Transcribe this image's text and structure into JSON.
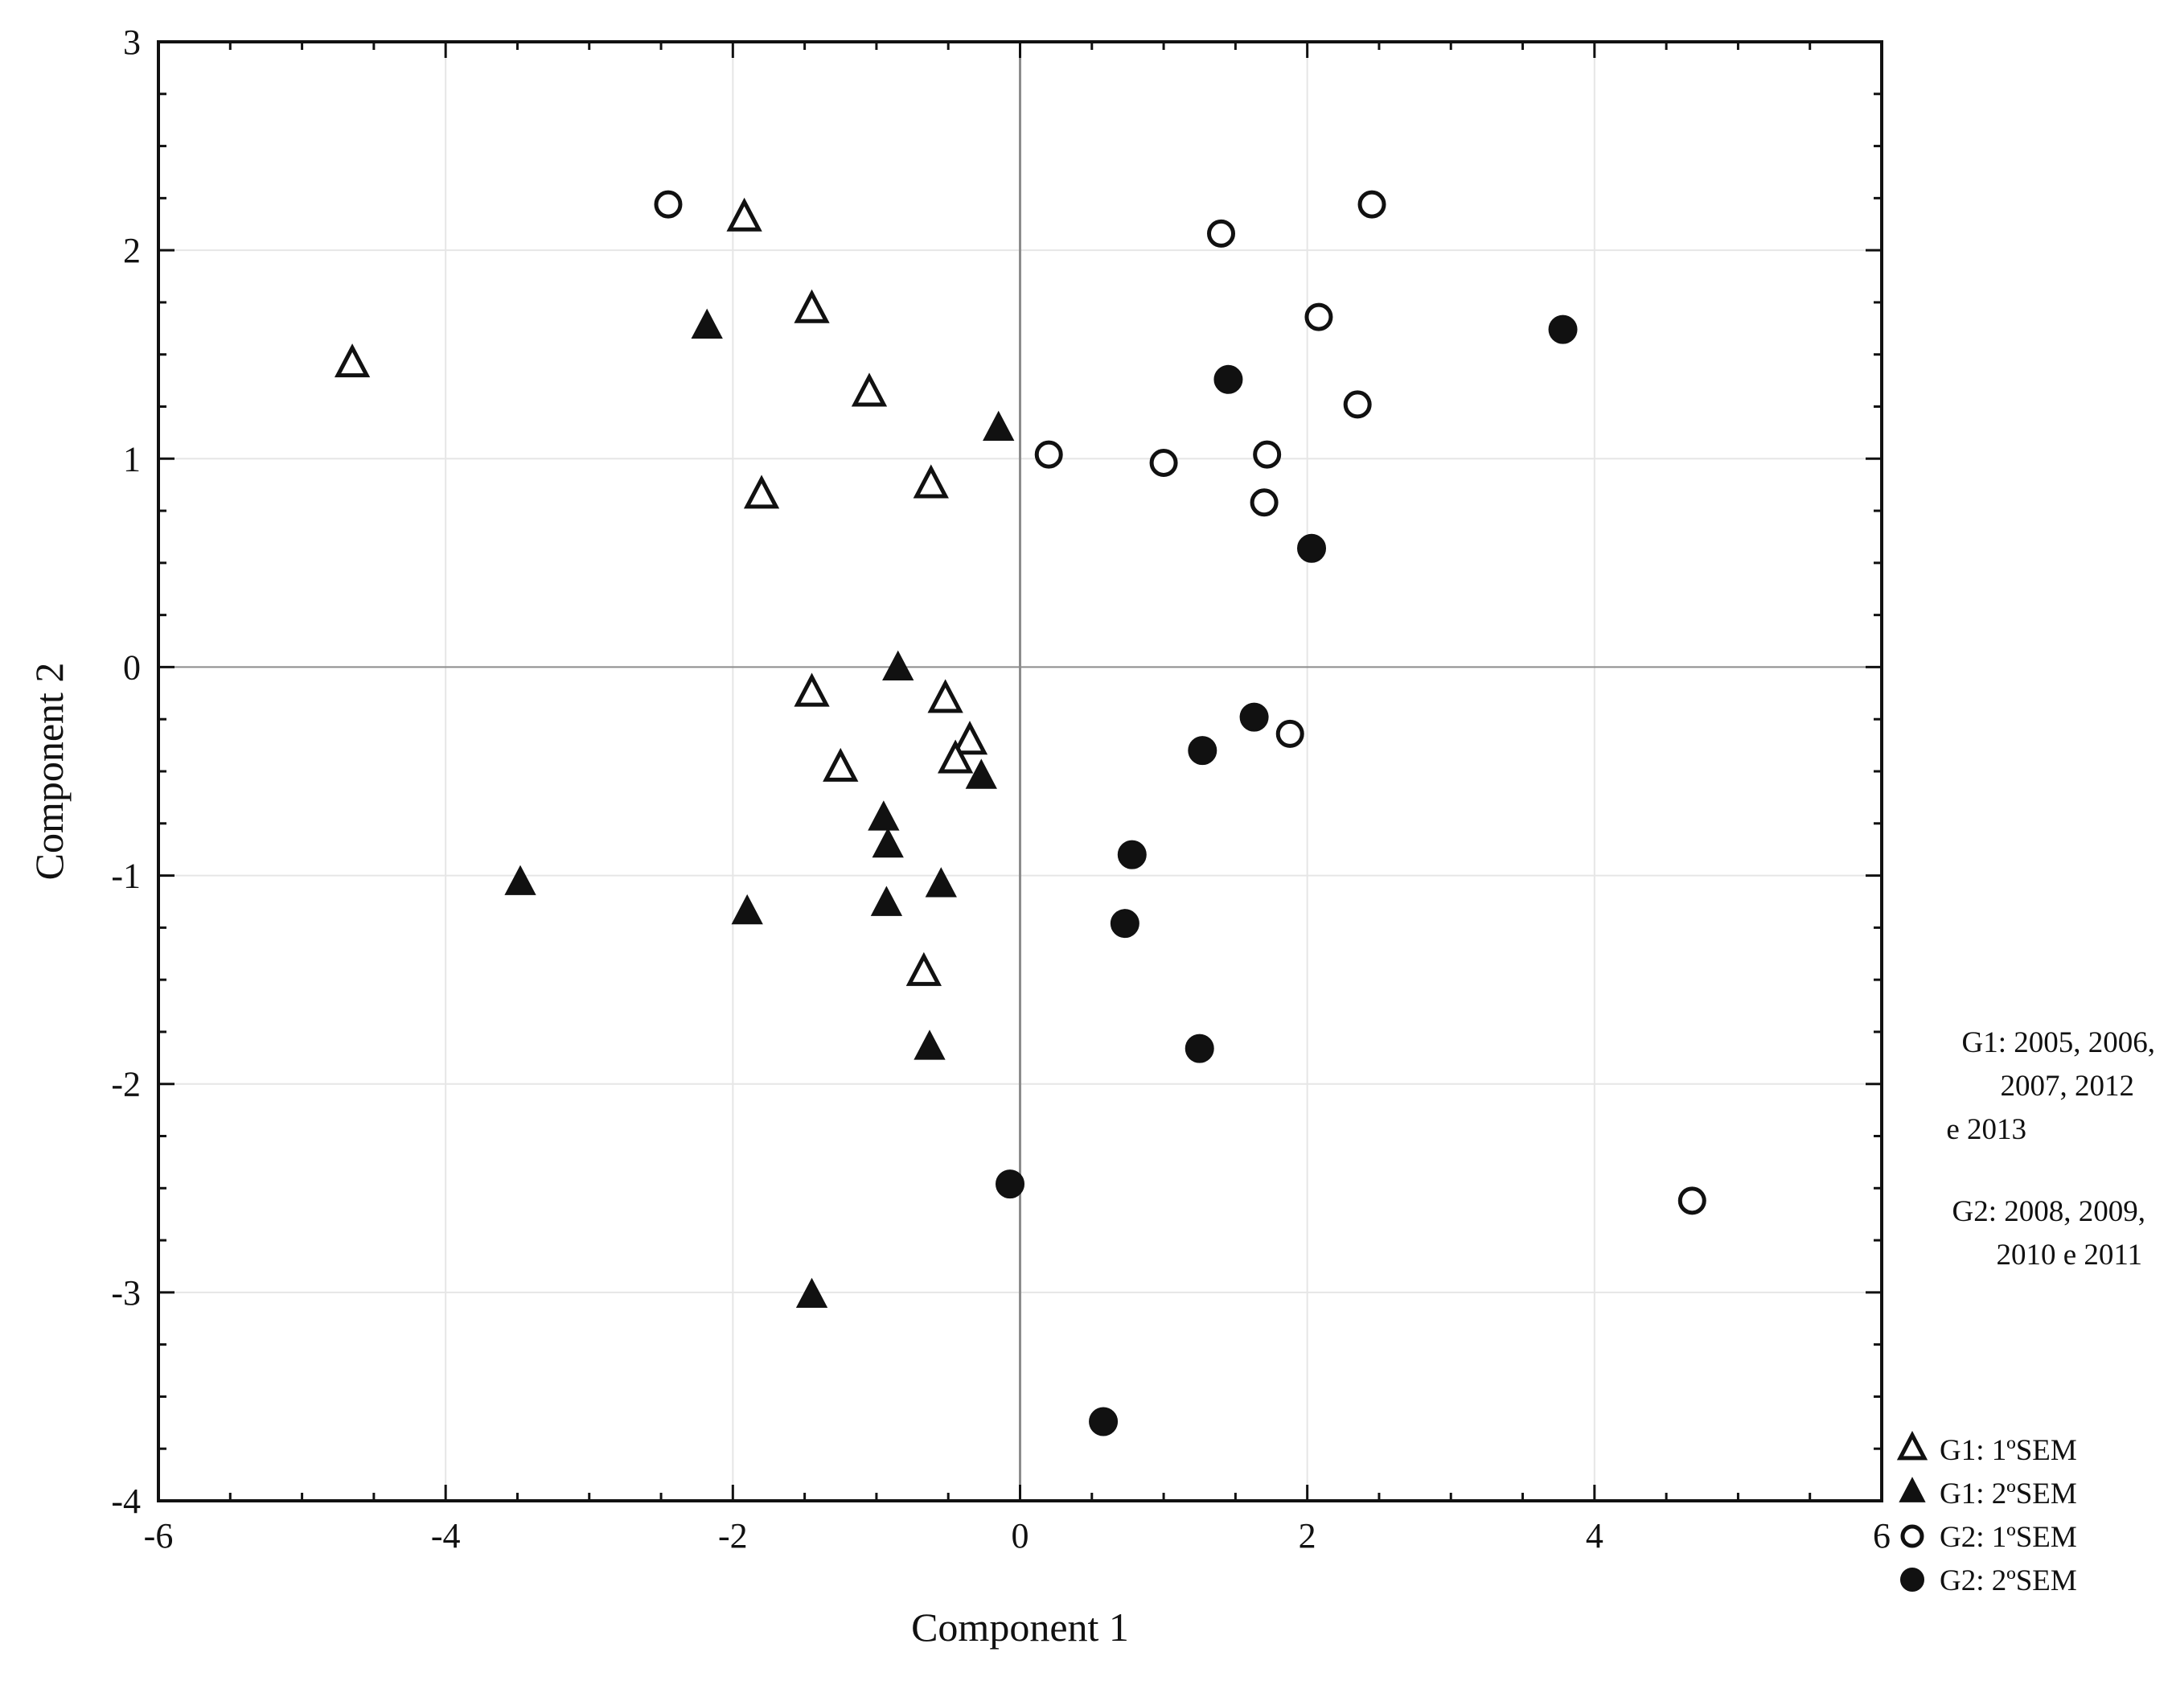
{
  "chart_data": {
    "type": "scatter",
    "xlabel": "Component 1",
    "ylabel": "Component 2",
    "xlim": [
      -6,
      6
    ],
    "ylim": [
      -4,
      3
    ],
    "x_ticks": [
      "-6",
      "-4",
      "-2",
      "0",
      "2",
      "4",
      "6"
    ],
    "y_ticks": [
      "3",
      "2",
      "1",
      "0",
      "-1",
      "-2",
      "-3",
      "-4"
    ],
    "grid": true,
    "zero_lines": true,
    "legend_position": "bottom-right",
    "group_notes": [
      [
        "G1: 2005, 2006,",
        "2007, 2012",
        "e 2013"
      ],
      [
        "G2: 2008, 2009,",
        "2010 e 2011"
      ]
    ],
    "series": [
      {
        "name": "G1: 1ºSEM",
        "marker": "triangle-open",
        "points": [
          [
            -4.65,
            1.45
          ],
          [
            -1.92,
            2.15
          ],
          [
            -1.45,
            1.71
          ],
          [
            -1.05,
            1.31
          ],
          [
            -1.8,
            0.82
          ],
          [
            -0.62,
            0.87
          ],
          [
            -1.45,
            -0.13
          ],
          [
            -0.52,
            -0.16
          ],
          [
            -0.35,
            -0.36
          ],
          [
            -0.45,
            -0.45
          ],
          [
            -1.25,
            -0.49
          ],
          [
            -0.67,
            -1.47
          ]
        ]
      },
      {
        "name": "G1: 2ºSEM",
        "marker": "triangle-filled",
        "points": [
          [
            -2.18,
            1.63
          ],
          [
            -0.15,
            1.14
          ],
          [
            -0.85,
            -0.01
          ],
          [
            -0.27,
            -0.53
          ],
          [
            -0.95,
            -0.73
          ],
          [
            -0.92,
            -0.86
          ],
          [
            -0.55,
            -1.05
          ],
          [
            -0.93,
            -1.14
          ],
          [
            -1.9,
            -1.18
          ],
          [
            -3.48,
            -1.04
          ],
          [
            -0.63,
            -1.83
          ],
          [
            -1.45,
            -3.02
          ]
        ]
      },
      {
        "name": "G2: 1ºSEM",
        "marker": "circle-open",
        "points": [
          [
            -2.45,
            2.22
          ],
          [
            1.4,
            2.08
          ],
          [
            2.45,
            2.22
          ],
          [
            2.08,
            1.68
          ],
          [
            2.35,
            1.26
          ],
          [
            0.2,
            1.02
          ],
          [
            1.0,
            0.98
          ],
          [
            1.72,
            1.02
          ],
          [
            1.7,
            0.79
          ],
          [
            1.88,
            -0.32
          ],
          [
            4.68,
            -2.56
          ]
        ]
      },
      {
        "name": "G2: 2ºSEM",
        "marker": "circle-filled",
        "points": [
          [
            3.78,
            1.62
          ],
          [
            1.45,
            1.38
          ],
          [
            2.03,
            0.57
          ],
          [
            1.63,
            -0.24
          ],
          [
            1.27,
            -0.4
          ],
          [
            0.78,
            -0.9
          ],
          [
            0.73,
            -1.23
          ],
          [
            1.25,
            -1.83
          ],
          [
            -0.07,
            -2.48
          ],
          [
            0.58,
            -3.62
          ]
        ]
      }
    ]
  },
  "colors": {
    "ink": "#111111",
    "grid": "#e6e6e6",
    "zero_line": "#8c8c8c",
    "background": "#ffffff"
  }
}
